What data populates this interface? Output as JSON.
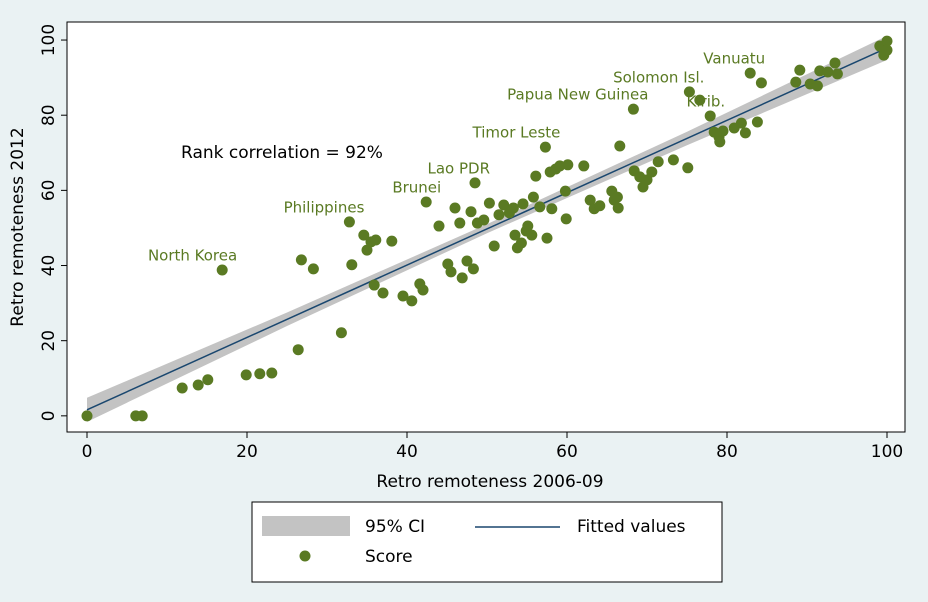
{
  "chart_data": {
    "type": "scatter",
    "xlabel": "Retro remoteness 2006-09",
    "ylabel": "Retro remoteness 2012",
    "annotation": "Rank correlation = 92%",
    "xlim": [
      -2.5,
      102.25
    ],
    "ylim": [
      -4.3,
      104.8
    ],
    "xticks": [
      0,
      20,
      40,
      60,
      80,
      100
    ],
    "yticks": [
      0,
      20,
      40,
      60,
      80,
      100
    ],
    "grid": false,
    "legend": "bottom",
    "series": [
      {
        "name": "95% CI",
        "color": "#c3c3c3",
        "x": [
          0,
          25,
          50,
          75,
          100
        ],
        "lower": [
          -1.6,
          23.9,
          48.6,
          72,
          94.7
        ],
        "upper": [
          4.8,
          27.5,
          51,
          75.6,
          101.1
        ]
      },
      {
        "name": "Fitted values",
        "color": "#1a476f",
        "x": [
          0,
          100
        ],
        "values": [
          1.6,
          97.9
        ]
      },
      {
        "name": "Score",
        "color": "#5a7a23",
        "x": [
          0,
          6.1,
          6.9,
          11.9,
          13.9,
          15.1,
          16.9,
          19.9,
          21.6,
          23.1,
          26.4,
          26.8,
          28.3,
          31.8,
          32.8,
          33.1,
          34.6,
          35,
          35.5,
          36.1,
          35.9,
          37,
          38.1,
          39.5,
          40.6,
          41.6,
          42,
          42.4,
          44,
          45.1,
          45.5,
          46,
          46.6,
          46.9,
          47.5,
          48,
          48.3,
          48.5,
          48.8,
          49.6,
          50.3,
          50.9,
          51.5,
          52.1,
          52.8,
          53.3,
          53.5,
          53.8,
          54.3,
          54.5,
          54.9,
          55.1,
          55.6,
          55.8,
          56.1,
          56.6,
          57.3,
          57.5,
          57.9,
          58.1,
          58.6,
          59.1,
          59.8,
          60.1,
          59.9,
          62.1,
          62.9,
          63.4,
          64.1,
          65.6,
          65.9,
          66.3,
          66.4,
          66.6,
          68.3,
          68.4,
          69.1,
          69.5,
          70,
          70.6,
          71.4,
          73.3,
          75.1,
          75.3,
          76.6,
          77.9,
          78.4,
          79,
          79.1,
          79.5,
          80.9,
          81.8,
          82.3,
          82.9,
          83.8,
          84.3,
          88.6,
          89.1,
          90.4,
          91.3,
          91.6,
          92.6,
          93.5,
          93.8,
          99.1,
          99.6,
          100,
          100
        ],
        "values": [
          0,
          0,
          0,
          7.4,
          8.2,
          9.6,
          38.8,
          10.9,
          11.2,
          11.4,
          17.6,
          41.5,
          39.1,
          22.1,
          51.6,
          40.2,
          48.1,
          44.1,
          46.3,
          46.8,
          34.8,
          32.7,
          46.5,
          31.9,
          30.6,
          35.1,
          33.5,
          56.9,
          50.5,
          40.4,
          38.3,
          55.3,
          51.3,
          36.7,
          41.2,
          54.3,
          39.1,
          62,
          51.3,
          52.1,
          56.6,
          45.2,
          53.5,
          56.1,
          54,
          55.3,
          48.1,
          44.7,
          46,
          56.4,
          49.2,
          50.5,
          48.1,
          58.2,
          63.8,
          55.6,
          71.5,
          47.3,
          64.9,
          55.1,
          65.7,
          66.5,
          59.8,
          66.8,
          52.4,
          66.5,
          57.4,
          55.1,
          55.9,
          59.8,
          57.4,
          58.2,
          55.3,
          71.8,
          81.6,
          65.2,
          63.6,
          60.9,
          62.8,
          64.9,
          67.6,
          68.1,
          66,
          86.2,
          84,
          79.8,
          75.5,
          74.2,
          72.9,
          75.8,
          76.6,
          77.9,
          75.3,
          91.2,
          78.2,
          88.6,
          88.8,
          92,
          88.3,
          87.8,
          91.8,
          91.5,
          93.9,
          91,
          98.4,
          96,
          99.7,
          97.3
        ],
        "labels": [
          null,
          null,
          null,
          null,
          null,
          null,
          "North Korea",
          null,
          null,
          null,
          null,
          null,
          null,
          null,
          "Philippines",
          null,
          null,
          null,
          null,
          null,
          null,
          null,
          null,
          null,
          null,
          null,
          null,
          "Brunei",
          null,
          null,
          null,
          null,
          null,
          null,
          null,
          null,
          null,
          "Lao PDR",
          null,
          null,
          null,
          null,
          null,
          null,
          null,
          null,
          null,
          null,
          null,
          null,
          null,
          null,
          null,
          null,
          null,
          null,
          "Timor Leste",
          null,
          null,
          null,
          null,
          null,
          null,
          null,
          null,
          null,
          null,
          null,
          null,
          null,
          null,
          null,
          null,
          null,
          "Papua New Guinea",
          null,
          null,
          null,
          null,
          null,
          null,
          null,
          null,
          "Solomon Isl.",
          null,
          "Kirib.",
          null,
          null,
          null,
          null,
          null,
          null,
          null,
          "Vanuatu",
          null,
          null,
          null,
          null,
          null,
          null,
          null,
          null,
          null,
          null,
          null,
          null,
          null,
          null
        ]
      }
    ]
  }
}
